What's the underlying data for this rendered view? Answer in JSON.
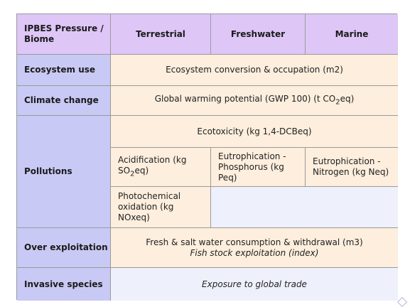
{
  "headers": {
    "corner": "IPBES Pressure / Biome",
    "terrestrial": "Terrestrial",
    "freshwater": "Freshwater",
    "marine": "Marine"
  },
  "rows": {
    "ecosystem_use": {
      "label": "Ecosystem use",
      "value": "Ecosystem conversion & occupation (m2)"
    },
    "climate_change": {
      "label": "Climate change",
      "value_pre": "Global warming potential (GWP 100) (t CO",
      "value_sub": "2",
      "value_post": "eq)"
    },
    "pollutions": {
      "label": "Pollutions",
      "ecotoxicity": "Ecotoxicity (kg 1,4-DCBeq)",
      "acidification_pre": "Acidification (kg SO",
      "acidification_sub": "2",
      "acidification_post": "eq)",
      "eutro_phosphorus": "Eutrophication - Phosphorus (kg Peq)",
      "eutro_nitrogen": "Eutrophication - Nitrogen (kg Neq)",
      "photochemical": "Photochemical oxidation (kg NOxeq)"
    },
    "over_exploitation": {
      "label": "Over exploitation",
      "line1": "Fresh & salt water consumption & withdrawal (m3)",
      "line2": "Fish stock exploitation (index)"
    },
    "invasive_species": {
      "label": "Invasive species",
      "value": "Exposure to global trade"
    }
  },
  "colors": {
    "header_purple": "#dec6f7",
    "row_header_blue": "#c9c9f5",
    "peach": "#fdeedd",
    "light_blue": "#eef1fc"
  },
  "icons": [
    "corner-diamond-icon"
  ]
}
